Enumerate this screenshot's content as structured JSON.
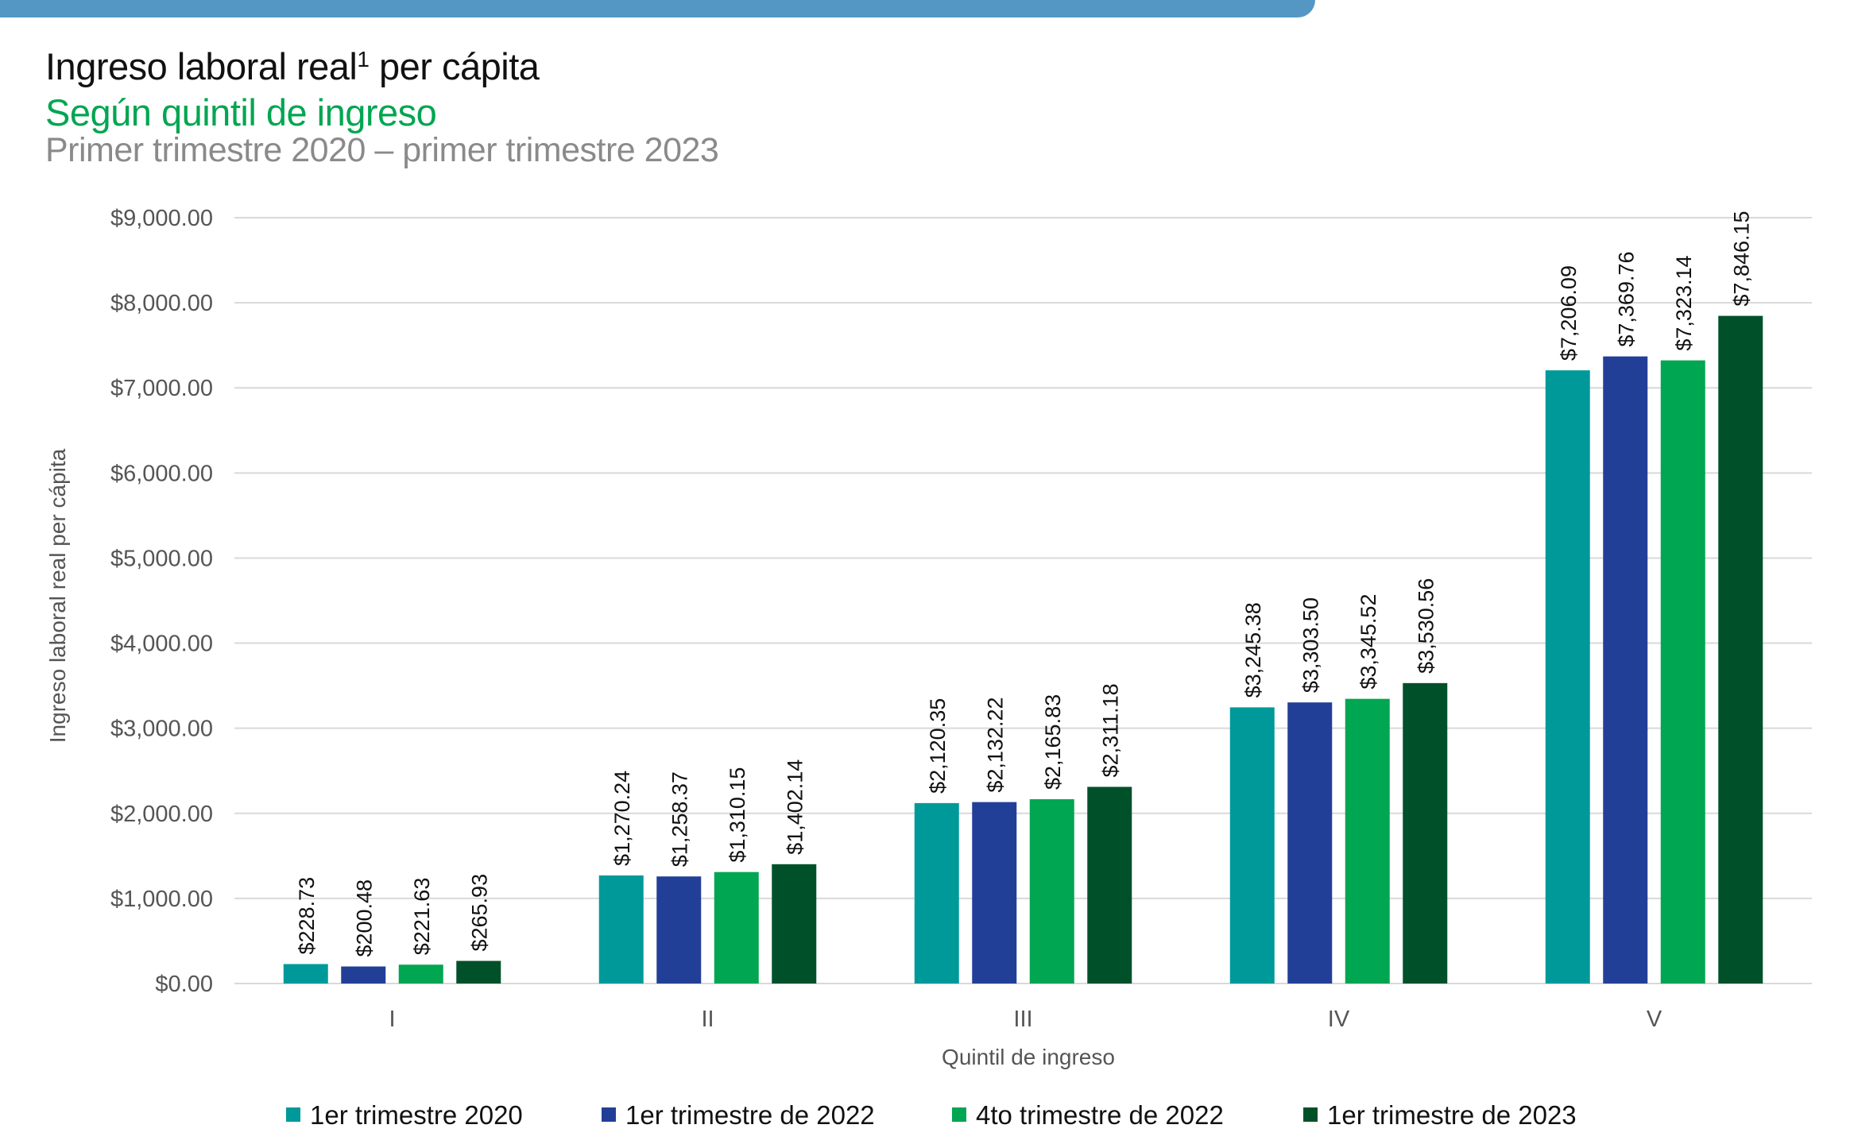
{
  "header": {
    "title": "Ingreso laboral real",
    "title_superscript": "1",
    "title_suffix": " per cápita",
    "subtitle": "Según quintil de ingreso",
    "period": "Primer trimestre 2020 – primer trimestre 2023"
  },
  "colors": {
    "banner": "#5497c5",
    "subtitle": "#00a651"
  },
  "chart_data": {
    "type": "bar",
    "title": "Ingreso laboral real¹ per cápita",
    "subtitle": "Según quintil de ingreso — Primer trimestre 2020 – primer trimestre 2023",
    "xlabel": "Quintil de ingreso",
    "ylabel": "Ingreso laboral real per cápita",
    "categories": [
      "I",
      "II",
      "III",
      "IV",
      "V"
    ],
    "ylim": [
      0,
      9000
    ],
    "yticks": [
      0,
      1000,
      2000,
      3000,
      4000,
      5000,
      6000,
      7000,
      8000,
      9000
    ],
    "ytick_labels": [
      "$0.00",
      "$1,000.00",
      "$2,000.00",
      "$3,000.00",
      "$4,000.00",
      "$5,000.00",
      "$6,000.00",
      "$7,000.00",
      "$8,000.00",
      "$9,000.00"
    ],
    "grid": true,
    "legend_position": "bottom",
    "series": [
      {
        "name": "1er trimestre 2020",
        "color": "#00999a",
        "values": [
          228.73,
          1270.24,
          2120.35,
          3245.38,
          7206.09
        ],
        "labels": [
          "$228.73",
          "$1,270.24",
          "$2,120.35",
          "$3,245.38",
          "$7,206.09"
        ]
      },
      {
        "name": "1er trimestre de 2022",
        "color": "#223f98",
        "values": [
          200.48,
          1258.37,
          2132.22,
          3303.5,
          7369.76
        ],
        "labels": [
          "$200.48",
          "$1,258.37",
          "$2,132.22",
          "$3,303.50",
          "$7,369.76"
        ]
      },
      {
        "name": "4to trimestre de 2022",
        "color": "#00a651",
        "values": [
          221.63,
          1310.15,
          2165.83,
          3345.52,
          7323.14
        ],
        "labels": [
          "$221.63",
          "$1,310.15",
          "$2,165.83",
          "$3,345.52",
          "$7,323.14"
        ]
      },
      {
        "name": "1er trimestre de 2023",
        "color": "#00512a",
        "values": [
          265.93,
          1402.14,
          2311.18,
          3530.56,
          7846.15
        ],
        "labels": [
          "$265.93",
          "$1,402.14",
          "$2,311.18",
          "$3,530.56",
          "$7,846.15"
        ]
      }
    ]
  }
}
